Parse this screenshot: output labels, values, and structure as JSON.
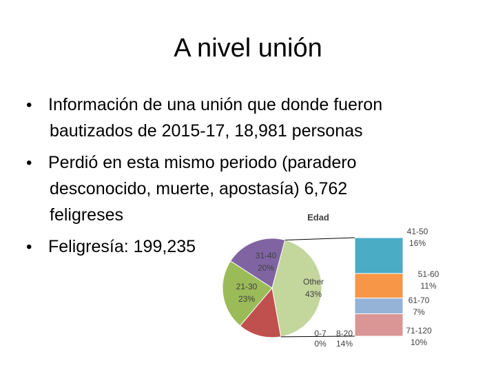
{
  "slide": {
    "title": "A nivel unión",
    "bullets": [
      {
        "lines": [
          "Información de una unión que donde fueron",
          "bautizados de 2015-17, 18,981 personas"
        ]
      },
      {
        "lines": [
          "Perdió en esta mismo periodo (paradero",
          "desconocido, muerte, apostasía) 6,762",
          "feligreses"
        ]
      },
      {
        "lines": [
          "Feligresía: 199,235"
        ]
      }
    ]
  },
  "chart_data": {
    "type": "bar-of-pie",
    "title": "Edad",
    "pie": {
      "categories": [
        "Other",
        "0-7",
        "8-20",
        "21-30",
        "31-40"
      ],
      "values": [
        43,
        0,
        14,
        23,
        20
      ],
      "value_labels": [
        "43%",
        "0%",
        "14%",
        "23%",
        "20%"
      ],
      "colors": [
        "#c3d69b",
        "#4f81bd",
        "#c0504d",
        "#9bbb59",
        "#8064a2"
      ]
    },
    "bar": {
      "categories": [
        "41-50",
        "51-60",
        "61-70",
        "71-120"
      ],
      "values": [
        16,
        11,
        7,
        10
      ],
      "value_labels": [
        "16%",
        "11%",
        "7%",
        "10%"
      ],
      "colors": [
        "#4bacc6",
        "#f79646",
        "#95b3d7",
        "#d99694"
      ]
    }
  }
}
